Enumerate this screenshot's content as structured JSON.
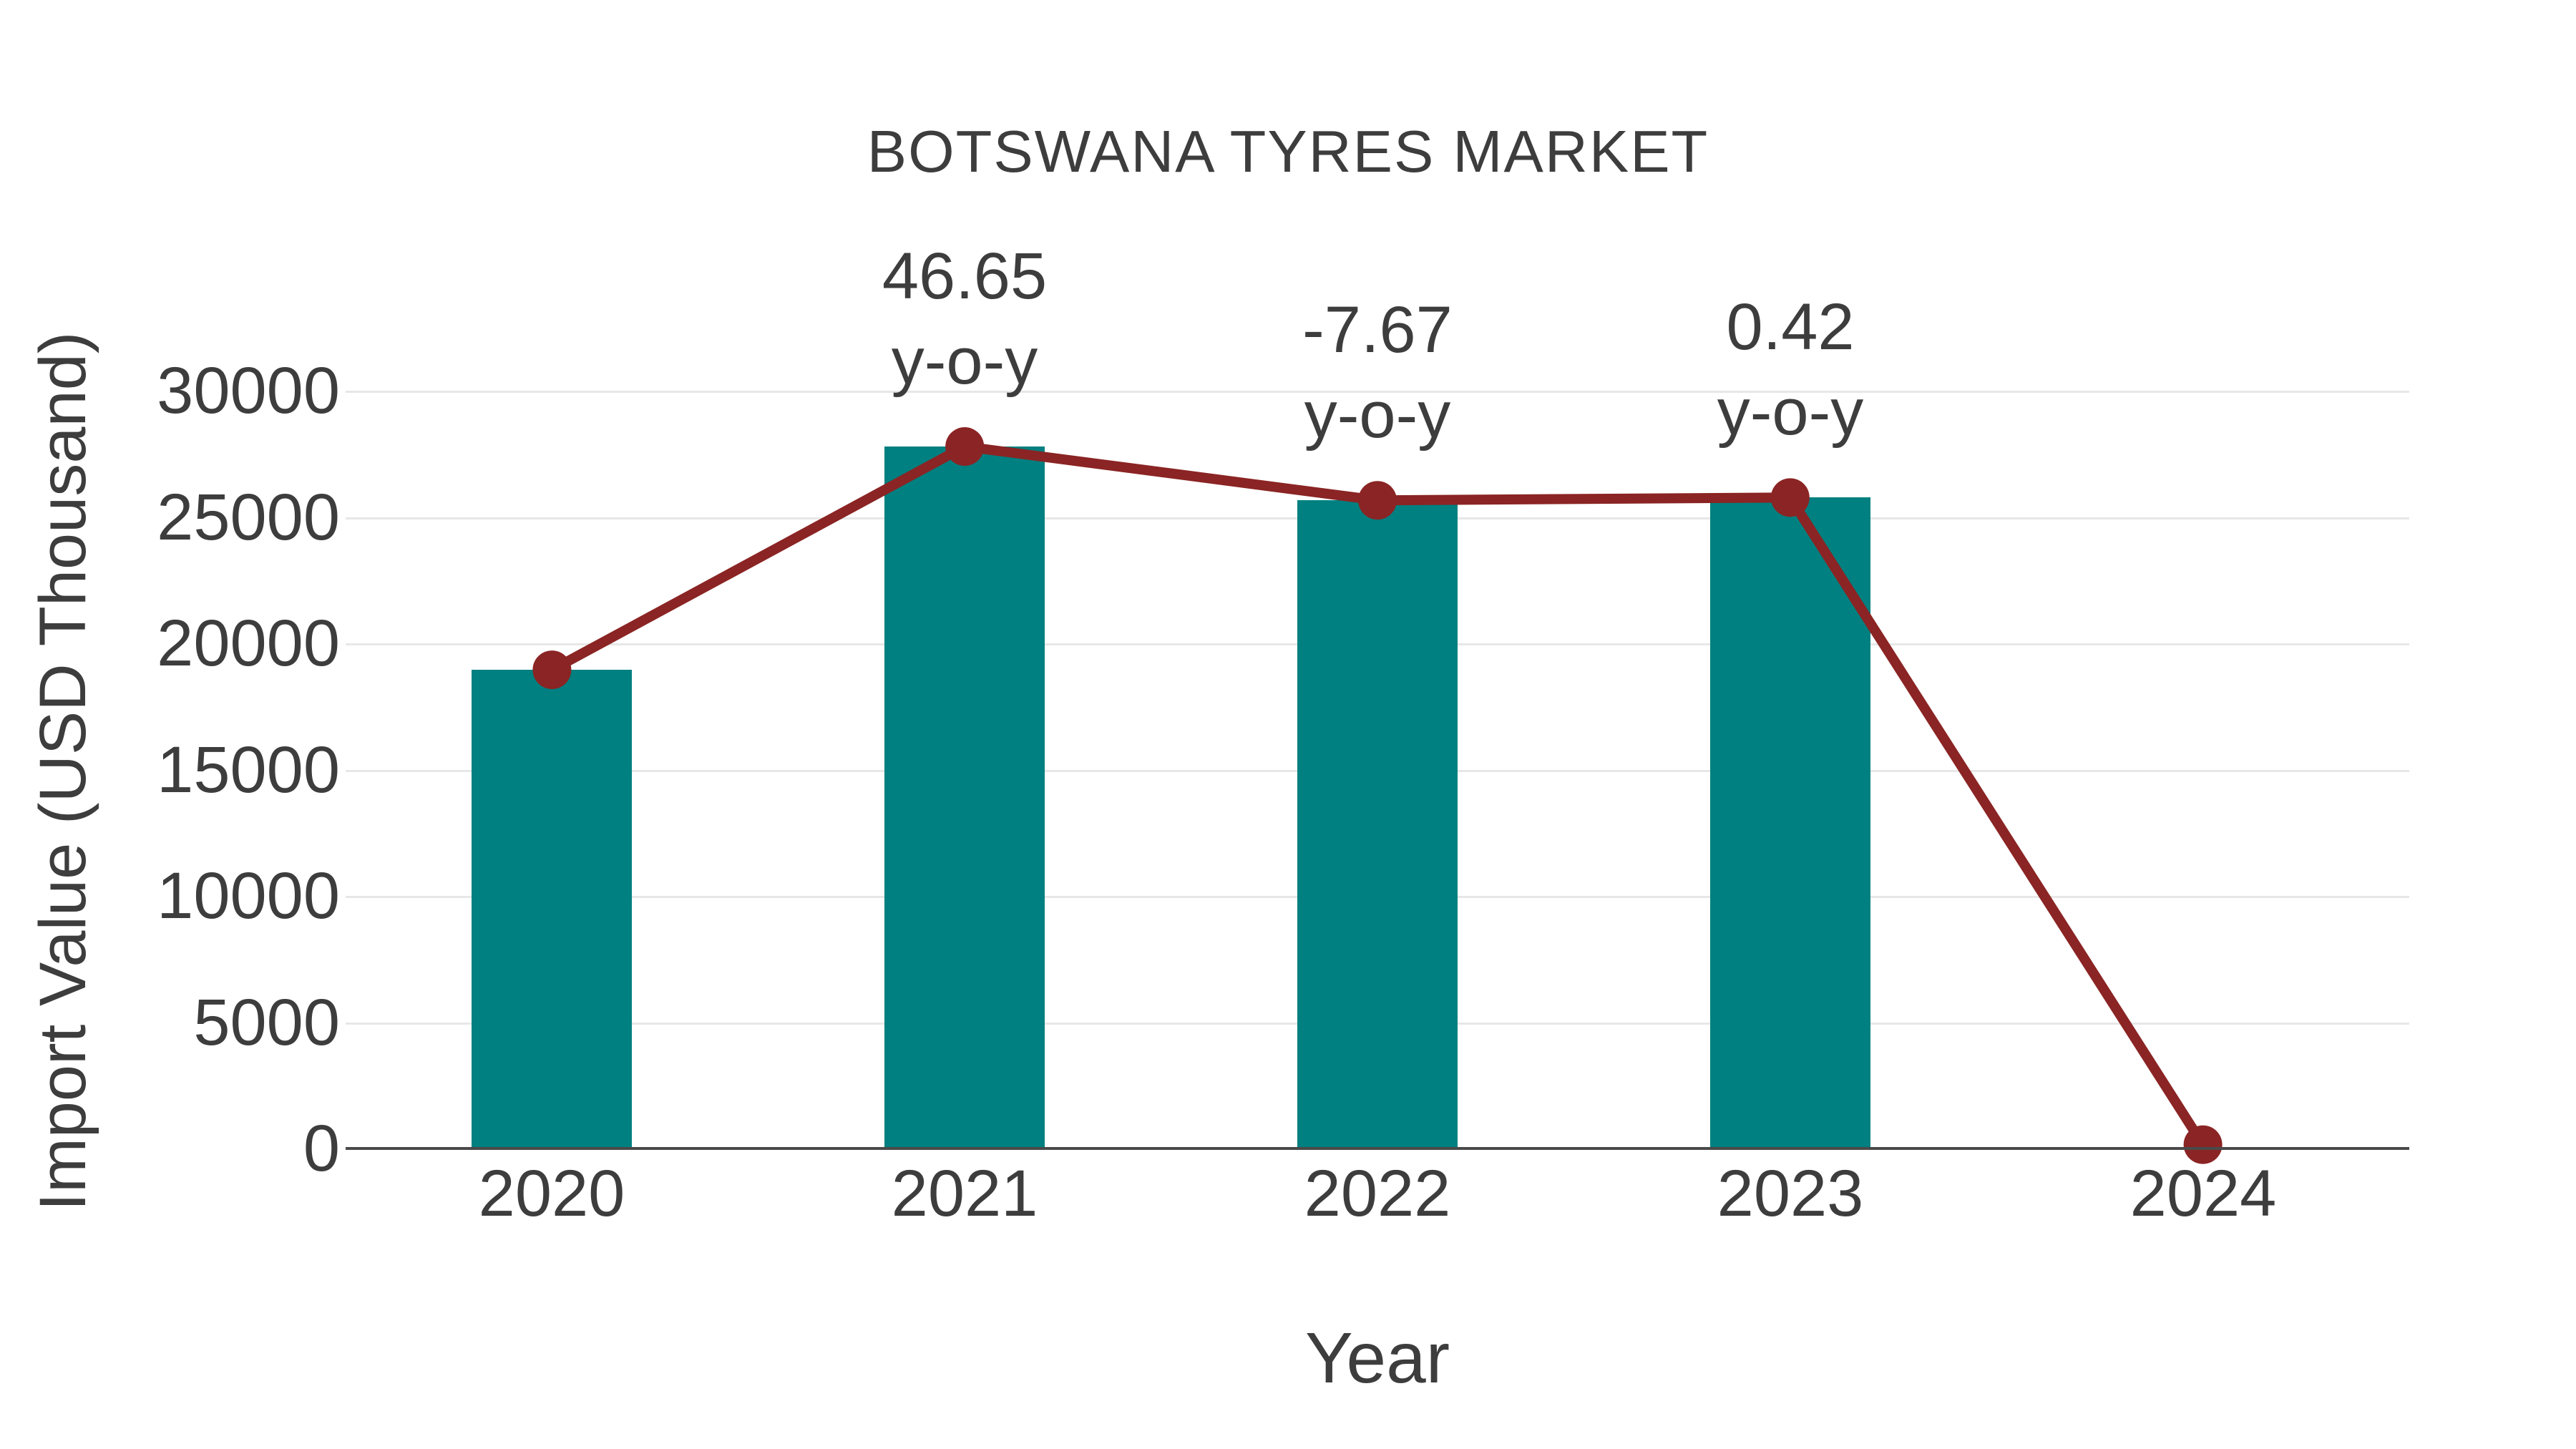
{
  "title": "BOTSWANA TYRES MARKET",
  "colors": {
    "bar": "#008080",
    "line": "#8B2424",
    "text": "#3D3D3D",
    "gridline": "#E7E7E7",
    "axis_line": "#4A4A4A"
  },
  "chart_data": {
    "type": "bar",
    "title": "BOTSWANA TYRES MARKET",
    "xlabel": "Year",
    "ylabel": "Import Value (USD Thousand)",
    "categories": [
      "2020",
      "2021",
      "2022",
      "2023",
      "2024"
    ],
    "series": [
      {
        "name": "Import Value bars",
        "type": "bar",
        "values": [
          18950,
          27790,
          25660,
          25770,
          null
        ]
      },
      {
        "name": "Import Value trend line",
        "type": "line",
        "values": [
          18950,
          27790,
          25660,
          25770,
          150
        ]
      }
    ],
    "annotations": [
      {
        "category": "2021",
        "lines": [
          "46.65",
          "y-o-y"
        ]
      },
      {
        "category": "2022",
        "lines": [
          "-7.67",
          "y-o-y"
        ]
      },
      {
        "category": "2023",
        "lines": [
          "0.42",
          "y-o-y"
        ]
      }
    ],
    "ylim": [
      0,
      30000
    ],
    "yticks": [
      0,
      5000,
      10000,
      15000,
      20000,
      25000,
      30000
    ],
    "grid": "horizontal",
    "legend": "none"
  }
}
